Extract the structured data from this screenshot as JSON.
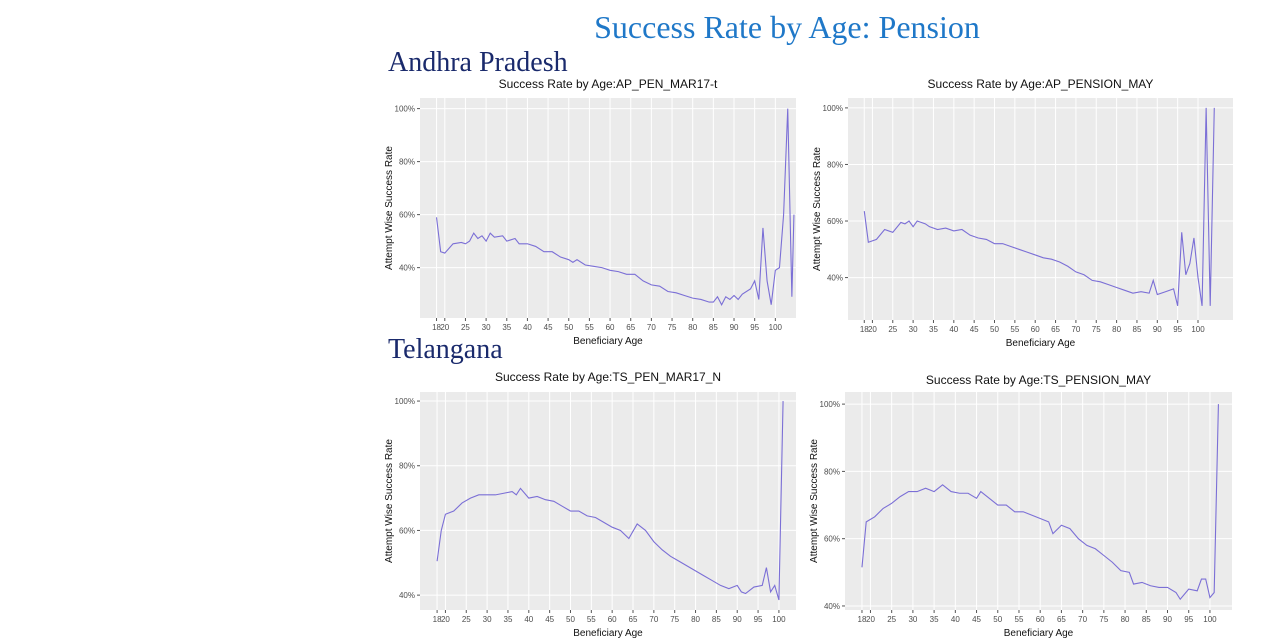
{
  "title": "Success Rate by Age: Pension",
  "sections": [
    "Andhra Pradesh",
    "Telangana"
  ],
  "chart_data": [
    {
      "type": "line",
      "title": "Success Rate by Age:AP_PEN_MAR17-t",
      "x_label": "Beneficiary Age",
      "y_label": "Attempt Wise Success Rate",
      "grid": true,
      "x": [
        18,
        19,
        20,
        22,
        24,
        25,
        26,
        27,
        28,
        29,
        30,
        31,
        32,
        34,
        35,
        37,
        38,
        40,
        42,
        44,
        46,
        48,
        50,
        51,
        52,
        54,
        56,
        58,
        60,
        62,
        64,
        66,
        68,
        70,
        72,
        74,
        76,
        78,
        80,
        82,
        84,
        85,
        86,
        87,
        88,
        89,
        90,
        91,
        92,
        94,
        95,
        96,
        97,
        98,
        99,
        100,
        101,
        102,
        103,
        104,
        104.5
      ],
      "series": [
        {
          "color": "#7b6fd6",
          "values": [
            59,
            46,
            45.5,
            49,
            49.5,
            49,
            50,
            53,
            51,
            52,
            50,
            53,
            51.5,
            52,
            50,
            51,
            49,
            49,
            48,
            46,
            46,
            44,
            43,
            42,
            43,
            41,
            40.5,
            40,
            39,
            38.5,
            37.5,
            37.5,
            35,
            33.5,
            33,
            31,
            30.5,
            29.5,
            28.5,
            28,
            27,
            27,
            29,
            26,
            29,
            28,
            29.5,
            28,
            30,
            32,
            35,
            28,
            55,
            35,
            26,
            39,
            40,
            60,
            100,
            29,
            60
          ]
        }
      ],
      "xlim": [
        14,
        105
      ],
      "ylim": [
        21,
        104
      ],
      "xticks": [
        18,
        20,
        25,
        30,
        35,
        40,
        45,
        50,
        55,
        60,
        65,
        70,
        75,
        80,
        85,
        90,
        95,
        100
      ],
      "yticks": [
        {
          "value": 40,
          "label": "40%"
        },
        {
          "value": 60,
          "label": "60%"
        },
        {
          "value": 80,
          "label": "80%"
        },
        {
          "value": 100,
          "label": "100%"
        }
      ]
    },
    {
      "type": "line",
      "title": "Success Rate by Age:AP_PENSION_MAY",
      "x_label": "Beneficiary Age",
      "y_label": "Attempt Wise Success Rate",
      "grid": true,
      "x": [
        18,
        19,
        21,
        23,
        25,
        27,
        28,
        29,
        30,
        31,
        33,
        34,
        36,
        38,
        40,
        42,
        44,
        46,
        48,
        50,
        52,
        54,
        56,
        58,
        60,
        62,
        64,
        66,
        68,
        70,
        72,
        74,
        76,
        78,
        80,
        82,
        84,
        86,
        88,
        89,
        90,
        92,
        94,
        95,
        96,
        97,
        98,
        99,
        100,
        101,
        102,
        103,
        104
      ],
      "series": [
        {
          "color": "#7b6fd6",
          "values": [
            63.5,
            52.5,
            53.5,
            57,
            56,
            59.5,
            59,
            60,
            58,
            60,
            59,
            58,
            57,
            57.5,
            56.5,
            57,
            55,
            54,
            53.5,
            52,
            52,
            51,
            50,
            49,
            48,
            47,
            46.5,
            45.5,
            44,
            42,
            41,
            39,
            38.5,
            37.5,
            36.5,
            35.5,
            34.5,
            35,
            34.5,
            39,
            34,
            35,
            36,
            30,
            56,
            41,
            45,
            54,
            40,
            30,
            100,
            30,
            100
          ]
        }
      ],
      "xlim": [
        14,
        108.6
      ],
      "ylim": [
        25,
        103.5
      ],
      "xticks": [
        18,
        20,
        25,
        30,
        35,
        40,
        45,
        50,
        55,
        60,
        65,
        70,
        75,
        80,
        85,
        90,
        95,
        100
      ],
      "yticks": [
        {
          "value": 40,
          "label": "40%"
        },
        {
          "value": 60,
          "label": "60%"
        },
        {
          "value": 80,
          "label": "80%"
        },
        {
          "value": 100,
          "label": "100%"
        }
      ]
    },
    {
      "type": "line",
      "title": "Success Rate by Age:TS_PEN_MAR17_N",
      "x_label": "Beneficiary Age",
      "y_label": "Attempt Wise Success Rate",
      "grid": true,
      "x": [
        18,
        19,
        20,
        22,
        24,
        26,
        28,
        30,
        32,
        34,
        36,
        37,
        38,
        40,
        42,
        44,
        46,
        48,
        50,
        52,
        54,
        56,
        58,
        60,
        62,
        64,
        66,
        68,
        70,
        72,
        74,
        76,
        78,
        80,
        82,
        84,
        86,
        88,
        90,
        91,
        92,
        94,
        96,
        97,
        98,
        99,
        100,
        101
      ],
      "series": [
        {
          "color": "#7b6fd6",
          "values": [
            50.5,
            60,
            65,
            66,
            68.5,
            70,
            71,
            71,
            71,
            71.5,
            72,
            71,
            73,
            70,
            70.5,
            69.5,
            69,
            67.5,
            66,
            66,
            64.5,
            64,
            62.5,
            61,
            60,
            57.5,
            62,
            60,
            56.5,
            54,
            52,
            50.5,
            49,
            47.5,
            46,
            44.5,
            43,
            42,
            43,
            41,
            40.5,
            42.5,
            43,
            48.5,
            41,
            43,
            38.5,
            100
          ]
        }
      ],
      "xlim": [
        13.9,
        104.1
      ],
      "ylim": [
        35.4,
        102.8
      ],
      "xticks": [
        18,
        20,
        25,
        30,
        35,
        40,
        45,
        50,
        55,
        60,
        65,
        70,
        75,
        80,
        85,
        90,
        95,
        100
      ],
      "yticks": [
        {
          "value": 40,
          "label": "40%"
        },
        {
          "value": 60,
          "label": "60%"
        },
        {
          "value": 80,
          "label": "80%"
        },
        {
          "value": 100,
          "label": "100%"
        }
      ]
    },
    {
      "type": "line",
      "title": "Success Rate by Age:TS_PENSION_MAY",
      "x_label": "Beneficiary Age",
      "y_label": "Attempt Wise Success Rate",
      "grid": true,
      "x": [
        18,
        19,
        21,
        23,
        25,
        27,
        29,
        31,
        33,
        35,
        37,
        39,
        41,
        43,
        45,
        46,
        48,
        50,
        52,
        54,
        56,
        58,
        60,
        62,
        63,
        65,
        67,
        69,
        71,
        73,
        75,
        77,
        79,
        81,
        82,
        84,
        86,
        88,
        90,
        92,
        93,
        95,
        97,
        98,
        99,
        100,
        101,
        102
      ],
      "series": [
        {
          "color": "#7b6fd6",
          "values": [
            51.5,
            65,
            66.5,
            69,
            70.5,
            72.5,
            74,
            74,
            75,
            74,
            76,
            74,
            73.5,
            73.5,
            72,
            74,
            72,
            70,
            70,
            68,
            68,
            67,
            66,
            65,
            61.5,
            64,
            63,
            60,
            58,
            57,
            55,
            53,
            50.5,
            50,
            46.5,
            47,
            46,
            45.5,
            45.5,
            44,
            42,
            45,
            44.5,
            48,
            48,
            42.5,
            44,
            100
          ]
        }
      ],
      "xlim": [
        14,
        105.2
      ],
      "ylim": [
        38.8,
        103.6
      ],
      "xticks": [
        18,
        20,
        25,
        30,
        35,
        40,
        45,
        50,
        55,
        60,
        65,
        70,
        75,
        80,
        85,
        90,
        95,
        100
      ],
      "yticks": [
        {
          "value": 40,
          "label": "40%"
        },
        {
          "value": 60,
          "label": "60%"
        },
        {
          "value": 80,
          "label": "80%"
        },
        {
          "value": 100,
          "label": "100%"
        }
      ]
    }
  ]
}
